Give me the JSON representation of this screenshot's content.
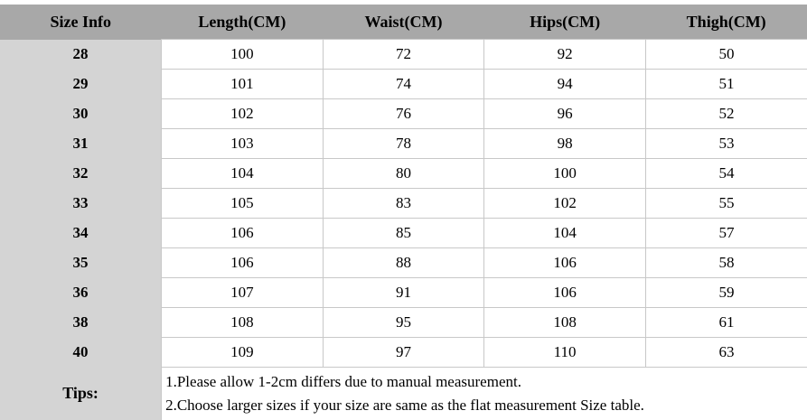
{
  "chart_data": {
    "type": "table",
    "title": "Size Info",
    "headers": [
      "Size Info",
      "Length(CM)",
      "Waist(CM)",
      "Hips(CM)",
      "Thigh(CM)"
    ],
    "rows": [
      [
        "28",
        "100",
        "72",
        "92",
        "50"
      ],
      [
        "29",
        "101",
        "74",
        "94",
        "51"
      ],
      [
        "30",
        "102",
        "76",
        "96",
        "52"
      ],
      [
        "31",
        "103",
        "78",
        "98",
        "53"
      ],
      [
        "32",
        "104",
        "80",
        "100",
        "54"
      ],
      [
        "33",
        "105",
        "83",
        "102",
        "55"
      ],
      [
        "34",
        "106",
        "85",
        "104",
        "57"
      ],
      [
        "35",
        "106",
        "88",
        "106",
        "58"
      ],
      [
        "36",
        "107",
        "91",
        "106",
        "59"
      ],
      [
        "38",
        "108",
        "95",
        "108",
        "61"
      ],
      [
        "40",
        "109",
        "97",
        "110",
        "63"
      ]
    ],
    "tips_label": "Tips:",
    "tips": [
      "1.Please allow 1-2cm differs due to manual measurement.",
      "2.Choose larger sizes if your size are same as the flat measurement Size table."
    ]
  },
  "colors": {
    "header_bg": "#a8a8a8",
    "size_col_bg": "#d4d4d4",
    "border": "#c8c8c8",
    "text": "#000000"
  }
}
